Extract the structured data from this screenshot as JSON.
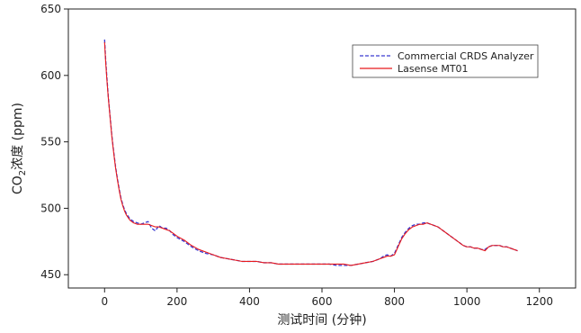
{
  "chart_data": {
    "type": "line",
    "xlabel": "测试时间 (分钟)",
    "ylabel": {
      "prefix": "CO",
      "subscript": "2",
      "suffix": "浓度 (ppm)"
    },
    "xlim": [
      -100,
      1300
    ],
    "ylim": [
      440,
      650
    ],
    "xticks": [
      0,
      200,
      400,
      600,
      800,
      1000,
      1200
    ],
    "yticks": [
      450,
      500,
      550,
      600,
      650
    ],
    "grid": false,
    "legend_position": "top-right",
    "series": [
      {
        "name": "Commercial CRDS Analyzer",
        "color": "#3a3ad0",
        "style": "dashed",
        "x": [
          0,
          3,
          6,
          10,
          15,
          20,
          25,
          30,
          35,
          40,
          45,
          50,
          55,
          60,
          70,
          80,
          90,
          100,
          110,
          120,
          130,
          140,
          150,
          160,
          170,
          180,
          190,
          200,
          220,
          240,
          260,
          280,
          300,
          320,
          340,
          360,
          380,
          400,
          420,
          440,
          460,
          480,
          500,
          520,
          540,
          560,
          580,
          600,
          620,
          640,
          660,
          680,
          700,
          720,
          740,
          760,
          770,
          780,
          790,
          800,
          810,
          820,
          830,
          840,
          850,
          860,
          870,
          880,
          890,
          900,
          910,
          920,
          930,
          940,
          950,
          960,
          970,
          980,
          990,
          1000,
          1010,
          1020,
          1030,
          1040,
          1050,
          1060,
          1070,
          1080,
          1090,
          1100,
          1110,
          1120,
          1130,
          1140
        ],
        "y": [
          627,
          612,
          600,
          585,
          570,
          555,
          543,
          532,
          523,
          515,
          508,
          503,
          499,
          496,
          492,
          490,
          489,
          488,
          489,
          490,
          485,
          483,
          487,
          485,
          485,
          483,
          480,
          478,
          475,
          471,
          468,
          466,
          465,
          463,
          462,
          461,
          460,
          460,
          460,
          459,
          459,
          458,
          458,
          458,
          458,
          458,
          458,
          458,
          458,
          457,
          457,
          457,
          458,
          459,
          460,
          462,
          464,
          465,
          464,
          466,
          472,
          478,
          482,
          485,
          487,
          488,
          488,
          489,
          489,
          488,
          487,
          486,
          484,
          482,
          480,
          478,
          476,
          474,
          472,
          471,
          471,
          470,
          470,
          469,
          469,
          471,
          472,
          472,
          472,
          471,
          471,
          470,
          469,
          468
        ]
      },
      {
        "name": "Lasense MT01",
        "color": "#e8191c",
        "style": "solid",
        "x": [
          0,
          3,
          6,
          10,
          15,
          20,
          25,
          30,
          35,
          40,
          45,
          50,
          55,
          60,
          70,
          80,
          90,
          100,
          110,
          120,
          130,
          140,
          150,
          160,
          170,
          180,
          190,
          200,
          220,
          240,
          260,
          280,
          300,
          320,
          340,
          360,
          380,
          400,
          420,
          440,
          460,
          480,
          500,
          520,
          540,
          560,
          580,
          600,
          620,
          640,
          660,
          680,
          700,
          720,
          740,
          760,
          770,
          780,
          790,
          800,
          810,
          820,
          830,
          840,
          850,
          860,
          870,
          880,
          890,
          900,
          910,
          920,
          930,
          940,
          950,
          960,
          970,
          980,
          990,
          1000,
          1010,
          1020,
          1030,
          1040,
          1050,
          1060,
          1070,
          1080,
          1090,
          1100,
          1110,
          1120,
          1130,
          1140
        ],
        "y": [
          625,
          610,
          598,
          584,
          569,
          554,
          542,
          531,
          522,
          514,
          507,
          502,
          498,
          495,
          491,
          489,
          488,
          488,
          488,
          488,
          487,
          486,
          486,
          485,
          484,
          483,
          481,
          479,
          476,
          472,
          469,
          467,
          465,
          463,
          462,
          461,
          460,
          460,
          460,
          459,
          459,
          458,
          458,
          458,
          458,
          458,
          458,
          458,
          458,
          458,
          458,
          457,
          458,
          459,
          460,
          462,
          463,
          464,
          464,
          465,
          471,
          477,
          481,
          484,
          486,
          487,
          488,
          488,
          489,
          488,
          487,
          486,
          484,
          482,
          480,
          478,
          476,
          474,
          472,
          471,
          471,
          470,
          470,
          469,
          468,
          471,
          472,
          472,
          472,
          471,
          471,
          470,
          469,
          468
        ]
      }
    ]
  }
}
